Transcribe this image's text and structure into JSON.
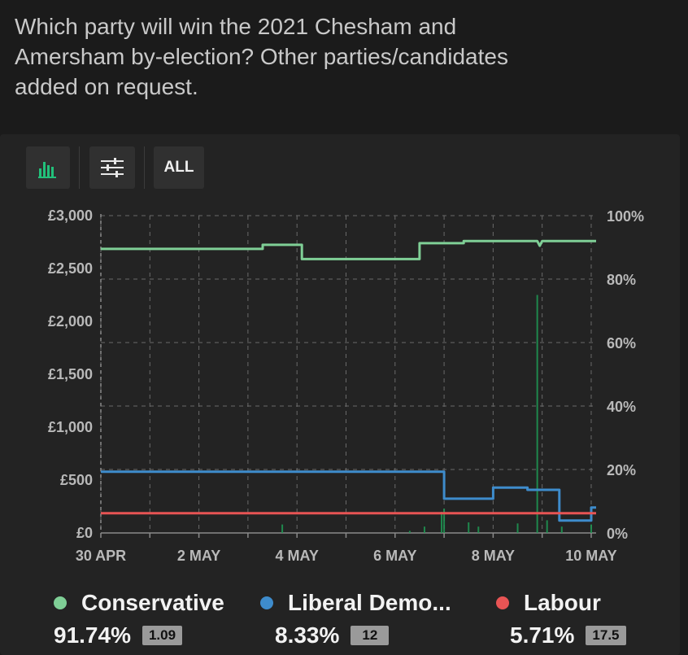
{
  "question": "Which party will win the 2021 Chesham and Amersham by-election? Other parties/candidates added on request.",
  "toolbar": {
    "chart_icon": "bar-chart-icon",
    "filter_icon": "sliders-icon",
    "range_label": "ALL"
  },
  "chart_data": {
    "type": "line",
    "x_tick_labels": [
      "30 APR",
      "2 MAY",
      "4 MAY",
      "6 MAY",
      "8 MAY",
      "10 MAY"
    ],
    "x_range_days": [
      0,
      10.1
    ],
    "left_axis": {
      "ticks": [
        "£3,000",
        "£2,500",
        "£2,000",
        "£1,500",
        "£1,000",
        "£500",
        "£0"
      ],
      "range": [
        0,
        3000
      ]
    },
    "right_axis": {
      "ticks": [
        "100%",
        "80%",
        "60%",
        "40%",
        "20%",
        "0%"
      ],
      "range": [
        0,
        100
      ]
    },
    "grid": true,
    "series": [
      {
        "name": "Conservative",
        "color": "#7fcf96",
        "points": [
          [
            0,
            89.5
          ],
          [
            3.3,
            89.5
          ],
          [
            3.3,
            90.8
          ],
          [
            4.1,
            90.8
          ],
          [
            4.1,
            86.3
          ],
          [
            6.5,
            86.3
          ],
          [
            6.5,
            91.3
          ],
          [
            7.4,
            91.3
          ],
          [
            7.4,
            92.0
          ],
          [
            8.9,
            92.0
          ],
          [
            8.95,
            90.5
          ],
          [
            9.0,
            92.0
          ],
          [
            10.1,
            92.0
          ]
        ]
      },
      {
        "name": "Liberal Democrat",
        "color": "#3e8ccc",
        "points": [
          [
            0,
            19.3
          ],
          [
            7.0,
            19.3
          ],
          [
            7.0,
            10.8
          ],
          [
            8.0,
            10.8
          ],
          [
            8.0,
            14.3
          ],
          [
            8.7,
            14.3
          ],
          [
            8.7,
            13.6
          ],
          [
            9.35,
            13.6
          ],
          [
            9.35,
            3.9
          ],
          [
            10.0,
            3.9
          ],
          [
            10.0,
            8.0
          ],
          [
            10.1,
            8.0
          ]
        ]
      },
      {
        "name": "Labour",
        "color": "#e85454",
        "points": [
          [
            0,
            6.2
          ],
          [
            10.1,
            6.2
          ]
        ]
      }
    ],
    "volume_bars": [
      [
        3.7,
        80
      ],
      [
        6.3,
        20
      ],
      [
        6.6,
        60
      ],
      [
        6.95,
        200
      ],
      [
        7.0,
        230
      ],
      [
        7.5,
        100
      ],
      [
        7.7,
        60
      ],
      [
        8.5,
        90
      ],
      [
        8.9,
        2250
      ],
      [
        9.1,
        120
      ],
      [
        9.4,
        60
      ],
      [
        10.0,
        80
      ]
    ]
  },
  "legend": [
    {
      "name": "Conservative",
      "color": "#7fcf96",
      "percent": "91.74%",
      "odds": "1.09"
    },
    {
      "name": "Liberal Demo...",
      "color": "#3e8ccc",
      "percent": "8.33%",
      "odds": "12"
    },
    {
      "name": "Labour",
      "color": "#e85454",
      "percent": "5.71%",
      "odds": "17.5"
    }
  ]
}
